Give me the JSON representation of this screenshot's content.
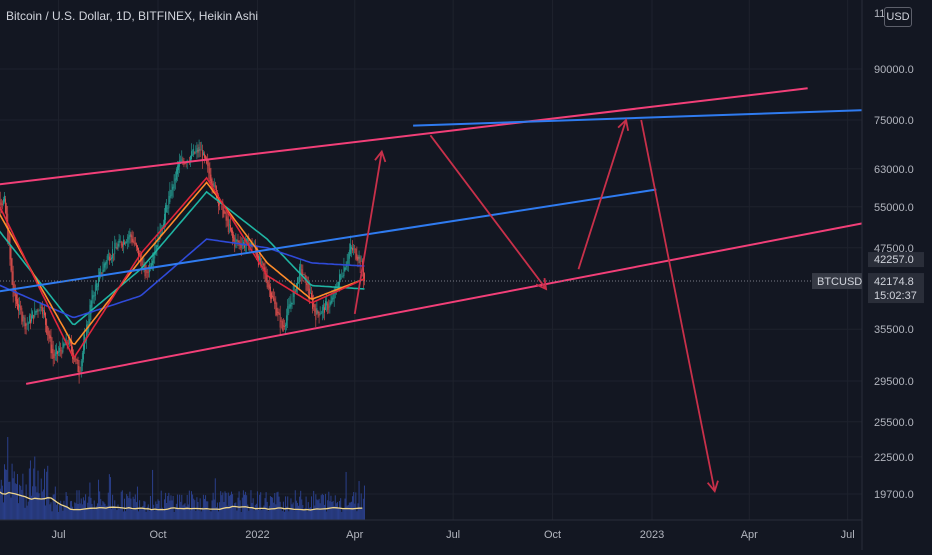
{
  "header": {
    "title": "Bitcoin / U.S. Dollar, 1D, BITFINEX, Heikin Ashi",
    "currency": "USD"
  },
  "price_scale": {
    "ticks": [
      "11",
      "90000.0",
      "75000.0",
      "63000.0",
      "55000.0",
      "47500.0",
      "35500.0",
      "29500.0",
      "25500.0",
      "22500.0",
      "19700.0"
    ]
  },
  "last_price": {
    "symbol": "BTCUSD",
    "high_label": "42257.0",
    "price": "42174.8",
    "countdown": "15:02:37"
  },
  "time_axis": {
    "labels": [
      "Jul",
      "Oct",
      "2022",
      "Apr",
      "Jul",
      "Oct",
      "2023",
      "Apr",
      "Jul"
    ]
  },
  "colors": {
    "background": "#131722",
    "grid": "#1e222d",
    "text": "#b2b5be",
    "channel": "#f23f78",
    "blue_line": "#2f7bf0",
    "arrow": "#c8304a",
    "bull_candle": "#26a69a",
    "bear_candle": "#ef5350",
    "ma_teal": "#1fb5a3",
    "ma_blue": "#2f4ad8",
    "ma_orange": "#ff8c2a",
    "ma_red": "#e0263c",
    "volume_ma": "#f0d68b",
    "volume_bar": "#2a3f8a"
  },
  "chart_data": {
    "type": "candlestick",
    "chart_style": "Heikin Ashi",
    "interval": "1D",
    "symbol": "BTCUSD",
    "exchange": "BITFINEX",
    "y_scale": "log",
    "ylim": [
      18500,
      110000
    ],
    "y_ticks": [
      90000,
      75000,
      63000,
      55000,
      47500,
      35500,
      29500,
      25500,
      22500,
      19700
    ],
    "x_range": [
      "2021-05-01",
      "2023-08-15"
    ],
    "x_ticks": [
      {
        "date": "2021-07-01",
        "label": "Jul"
      },
      {
        "date": "2021-10-01",
        "label": "Oct"
      },
      {
        "date": "2022-01-01",
        "label": "2022"
      },
      {
        "date": "2022-04-01",
        "label": "Apr"
      },
      {
        "date": "2022-07-01",
        "label": "Jul"
      },
      {
        "date": "2022-10-01",
        "label": "Oct"
      },
      {
        "date": "2023-01-01",
        "label": "2023"
      },
      {
        "date": "2023-04-01",
        "label": "Apr"
      },
      {
        "date": "2023-07-01",
        "label": "Jul"
      }
    ],
    "price_path": [
      [
        "2021-05-01",
        57000
      ],
      [
        "2021-05-12",
        56000
      ],
      [
        "2021-05-20",
        40000
      ],
      [
        "2021-06-01",
        36000
      ],
      [
        "2021-06-15",
        39000
      ],
      [
        "2021-06-26",
        32000
      ],
      [
        "2021-07-10",
        34000
      ],
      [
        "2021-07-20",
        30500
      ],
      [
        "2021-08-01",
        40000
      ],
      [
        "2021-08-15",
        46000
      ],
      [
        "2021-09-05",
        50000
      ],
      [
        "2021-09-20",
        43000
      ],
      [
        "2021-10-05",
        52000
      ],
      [
        "2021-10-20",
        64000
      ],
      [
        "2021-11-09",
        67500
      ],
      [
        "2021-11-25",
        57000
      ],
      [
        "2021-12-10",
        48500
      ],
      [
        "2021-12-28",
        48000
      ],
      [
        "2022-01-10",
        42000
      ],
      [
        "2022-01-24",
        35500
      ],
      [
        "2022-02-10",
        44000
      ],
      [
        "2022-02-24",
        37500
      ],
      [
        "2022-03-10",
        39000
      ],
      [
        "2022-03-28",
        47500
      ],
      [
        "2022-04-05",
        46000
      ],
      [
        "2022-04-10",
        42174.8
      ]
    ],
    "moving_averages": [
      {
        "color": "teal",
        "points": [
          [
            "2021-05-01",
            52000
          ],
          [
            "2021-07-15",
            36000
          ],
          [
            "2021-09-15",
            44000
          ],
          [
            "2021-11-15",
            58000
          ],
          [
            "2022-01-10",
            49000
          ],
          [
            "2022-02-20",
            41500
          ],
          [
            "2022-04-10",
            41000
          ]
        ]
      },
      {
        "color": "blue",
        "points": [
          [
            "2021-05-01",
            42000
          ],
          [
            "2021-07-15",
            37000
          ],
          [
            "2021-09-15",
            40000
          ],
          [
            "2021-11-15",
            49000
          ],
          [
            "2022-01-10",
            47500
          ],
          [
            "2022-02-20",
            45000
          ],
          [
            "2022-04-10",
            44500
          ]
        ]
      },
      {
        "color": "orange",
        "points": [
          [
            "2021-05-01",
            56000
          ],
          [
            "2021-07-15",
            33500
          ],
          [
            "2021-09-15",
            45500
          ],
          [
            "2021-11-15",
            60000
          ],
          [
            "2022-01-10",
            45000
          ],
          [
            "2022-02-20",
            39500
          ],
          [
            "2022-04-10",
            42500
          ]
        ]
      },
      {
        "color": "red",
        "points": [
          [
            "2021-05-01",
            58000
          ],
          [
            "2021-07-15",
            32000
          ],
          [
            "2021-09-15",
            46500
          ],
          [
            "2021-11-15",
            61000
          ],
          [
            "2022-01-10",
            43000
          ],
          [
            "2022-02-20",
            39000
          ],
          [
            "2022-04-10",
            42500
          ]
        ]
      }
    ],
    "drawings": {
      "channel_lines": [
        {
          "from": [
            "2021-04-15",
            59000
          ],
          "to": [
            "2023-05-25",
            84000
          ]
        },
        {
          "from": [
            "2021-06-01",
            29200
          ],
          "to": [
            "2023-08-01",
            52500
          ]
        }
      ],
      "blue_lines": [
        {
          "from": [
            "2022-05-25",
            73500
          ],
          "to": [
            "2023-08-15",
            78000
          ]
        },
        {
          "from": [
            "2021-05-01",
            40500
          ],
          "to": [
            "2023-01-05",
            58500
          ]
        }
      ],
      "arrows": [
        {
          "from": [
            "2022-04-01",
            37500
          ],
          "to": [
            "2022-04-26",
            67000
          ]
        },
        {
          "from": [
            "2022-06-10",
            71000
          ],
          "to": [
            "2022-09-25",
            41000
          ]
        },
        {
          "from": [
            "2022-10-25",
            44000
          ],
          "to": [
            "2022-12-08",
            75000
          ]
        },
        {
          "from": [
            "2022-12-22",
            75000
          ],
          "to": [
            "2023-02-28",
            19900
          ]
        }
      ]
    },
    "volume": {
      "note": "volume histogram with moving average (no axis values shown)"
    }
  }
}
